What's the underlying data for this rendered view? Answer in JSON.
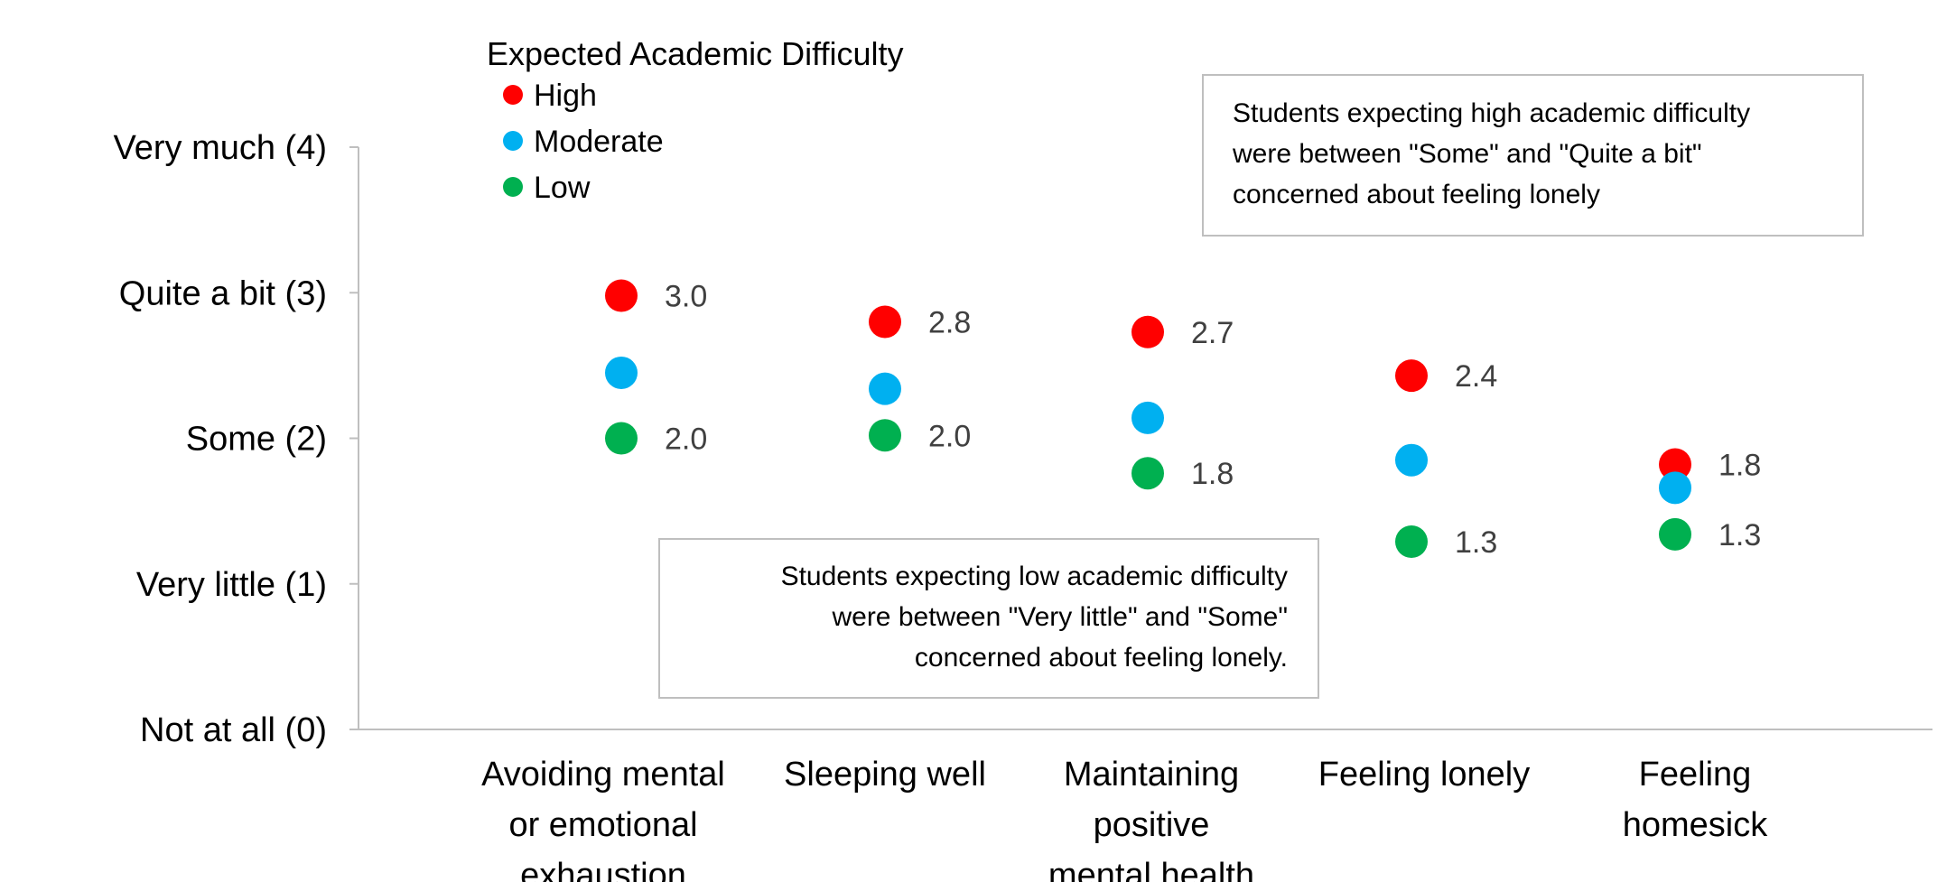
{
  "chart_data": {
    "type": "scatter",
    "categories": [
      "Avoiding mental or emotional exhaustion",
      "Sleeping well",
      "Maintaining positive mental health",
      "Feeling lonely",
      "Feeling homesick"
    ],
    "category_lines": [
      [
        "Avoiding mental",
        "or emotional",
        "exhaustion"
      ],
      [
        "Sleeping well"
      ],
      [
        "Maintaining",
        "positive",
        "mental health"
      ],
      [
        "Feeling lonely"
      ],
      [
        "Feeling",
        "homesick"
      ]
    ],
    "legend_title": "Expected Academic Difficulty",
    "legend_position": "top-left",
    "series": [
      {
        "name": "High",
        "color": "#FF0000",
        "values": [
          2.98,
          2.8,
          2.73,
          2.43,
          1.82
        ],
        "labels": [
          "3.0",
          "2.8",
          "2.7",
          "2.4",
          "1.8"
        ]
      },
      {
        "name": "Moderate",
        "color": "#00B0F0",
        "values": [
          2.45,
          2.34,
          2.14,
          1.85,
          1.66
        ],
        "labels": [
          "",
          "",
          "",
          "",
          ""
        ]
      },
      {
        "name": "Low",
        "color": "#00B050",
        "values": [
          2.0,
          2.02,
          1.76,
          1.29,
          1.34
        ],
        "labels": [
          "2.0",
          "2.0",
          "1.8",
          "1.3",
          "1.3"
        ]
      }
    ],
    "y_tick_values": [
      0,
      1,
      2,
      3,
      4
    ],
    "y_tick_labels": [
      "Not at all (0)",
      "Very little (1)",
      "Some (2)",
      "Quite a bit (3)",
      "Very much (4)"
    ],
    "ylim": [
      0,
      4
    ],
    "grid": false,
    "annotations": [
      {
        "name": "high-note",
        "lines": [
          "Students expecting high academic difficulty",
          "were between \"Some\" and \"Quite a bit\"",
          "concerned about feeling lonely"
        ],
        "align": "left"
      },
      {
        "name": "low-note",
        "lines": [
          "Students expecting low academic difficulty",
          "were between \"Very little\" and \"Some\"",
          "concerned about feeling lonely."
        ],
        "align": "right"
      }
    ]
  }
}
